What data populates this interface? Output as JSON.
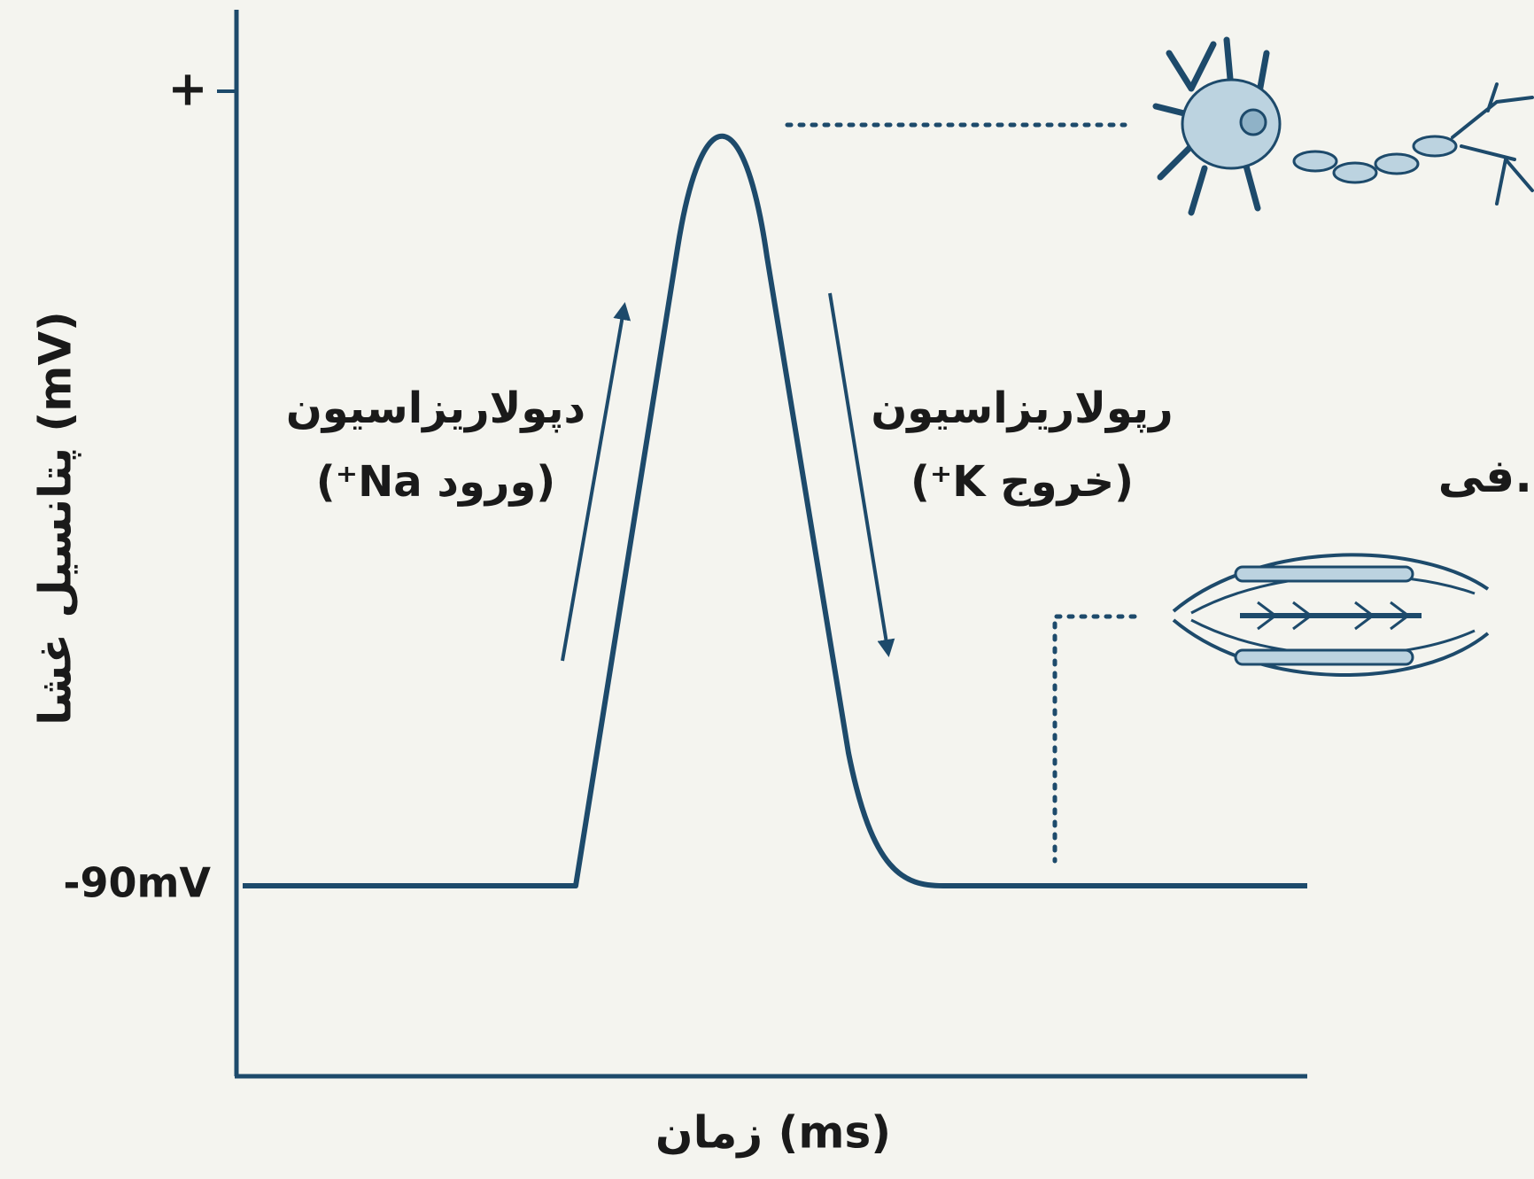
{
  "y_axis": {
    "title": "پتانسیل غشا (mV)",
    "ticks": [
      "+",
      "-90mV"
    ]
  },
  "x_axis": {
    "title": "زمان (ms)"
  },
  "annotations": {
    "depolarization": {
      "label": "دپولاریزاسیون",
      "detail": "(ورود Na⁺)"
    },
    "repolarization": {
      "label": "رپولاریزاسیون",
      "detail": "(خروج K⁺)"
    },
    "side_text": "فی."
  }
}
